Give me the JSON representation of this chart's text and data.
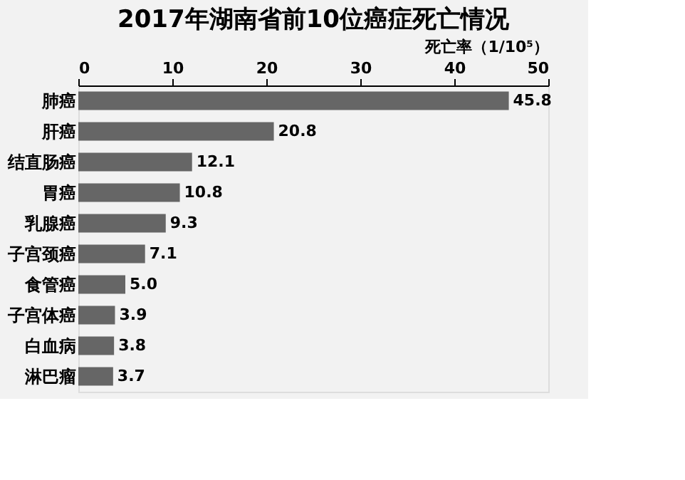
{
  "chart_data": {
    "type": "bar",
    "orientation": "horizontal",
    "title": "2017年湖南省前10位癌症死亡情况",
    "xlabel": "死亡率（1/10⁵）",
    "categories": [
      "肺癌",
      "肝癌",
      "结直肠癌",
      "胃癌",
      "乳腺癌",
      "子宫颈癌",
      "食管癌",
      "子宫体癌",
      "白血病",
      "淋巴瘤"
    ],
    "values": [
      45.8,
      20.8,
      12.1,
      10.8,
      9.3,
      7.1,
      5.0,
      3.9,
      3.8,
      3.7
    ],
    "value_labels": [
      "45.8",
      "20.8",
      "12.1",
      "10.8",
      "9.3",
      "7.1",
      "5.0",
      "3.9",
      "3.8",
      "3.7"
    ],
    "color": "#666666",
    "xlim": [
      0,
      50
    ],
    "xticks": [
      0,
      10,
      20,
      30,
      40,
      50
    ],
    "grid": false
  }
}
